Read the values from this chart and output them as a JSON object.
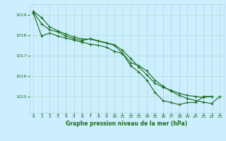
{
  "bg_color": "#cceeff",
  "line_color": "#1a6e1a",
  "grid_color": "#aaddcc",
  "title": "Graphe pression niveau de la mer (hPa)",
  "ylabel_ticks": [
    1015,
    1016,
    1017,
    1018,
    1019
  ],
  "xlabel_ticks": [
    0,
    1,
    2,
    3,
    4,
    5,
    6,
    7,
    8,
    9,
    10,
    11,
    12,
    13,
    14,
    15,
    16,
    17,
    18,
    19,
    20,
    21,
    22,
    23
  ],
  "ylim": [
    1014.2,
    1019.5
  ],
  "xlim": [
    -0.5,
    23.5
  ],
  "series": [
    [
      1019.15,
      1018.85,
      1018.4,
      1018.2,
      1018.05,
      1017.9,
      1017.8,
      1017.8,
      1017.7,
      1017.6,
      1017.5,
      1017.1,
      1016.5,
      1016.2,
      1015.8,
      1015.2,
      1014.8,
      1014.7,
      1014.6,
      1014.7,
      1014.7,
      1015.0,
      1015.0,
      null
    ],
    [
      1019.1,
      1018.55,
      1018.25,
      1018.15,
      1017.95,
      1017.82,
      1017.72,
      1017.82,
      1017.72,
      1017.62,
      1017.52,
      1017.25,
      1016.85,
      1016.45,
      1016.05,
      1015.65,
      1015.45,
      1015.3,
      1015.15,
      1015.05,
      1015.0,
      1014.95,
      1015.0,
      null
    ],
    [
      1019.05,
      1017.95,
      1018.1,
      1017.95,
      1017.85,
      1017.75,
      1017.65,
      1017.55,
      1017.5,
      1017.4,
      1017.2,
      1017.1,
      1016.65,
      1016.5,
      1016.25,
      1015.8,
      1015.5,
      1015.25,
      1015.05,
      1014.9,
      1014.8,
      1014.72,
      1014.65,
      1015.0
    ]
  ]
}
